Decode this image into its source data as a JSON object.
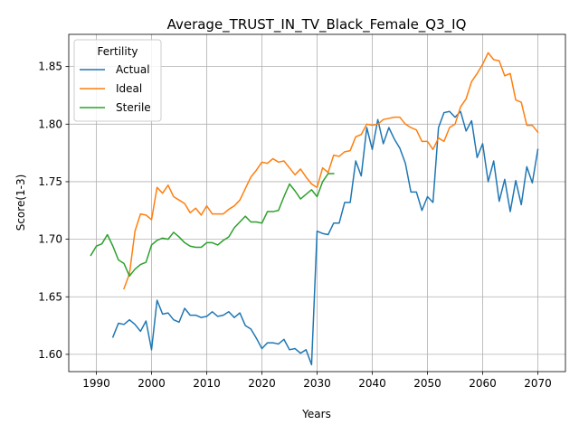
{
  "chart_data": {
    "type": "line",
    "title": "Average_TRUST_IN_TV_Black_Female_Q3_IQ",
    "xlabel": "Years",
    "ylabel": "Score(1-3)",
    "xlim": [
      1985,
      2075
    ],
    "ylim": [
      1.585,
      1.878
    ],
    "xticks": [
      1990,
      2000,
      2010,
      2020,
      2030,
      2040,
      2050,
      2060,
      2070
    ],
    "yticks": [
      1.6,
      1.65,
      1.7,
      1.75,
      1.8,
      1.85
    ],
    "grid": true,
    "legend": {
      "title": "Fertility",
      "placement": "top-left"
    },
    "series": [
      {
        "name": "Actual",
        "color": "#1f77b4",
        "x": [
          1993,
          1994,
          1995,
          1996,
          1997,
          1998,
          1999,
          2000,
          2001,
          2002,
          2003,
          2004,
          2005,
          2006,
          2007,
          2008,
          2009,
          2010,
          2011,
          2012,
          2013,
          2014,
          2015,
          2016,
          2017,
          2018,
          2019,
          2020,
          2021,
          2022,
          2023,
          2024,
          2025,
          2026,
          2027,
          2028,
          2029,
          2030,
          2031,
          2032,
          2033,
          2034,
          2035,
          2036,
          2037,
          2038,
          2039,
          2040,
          2041,
          2042,
          2043,
          2044,
          2045,
          2046,
          2047,
          2048,
          2049,
          2050,
          2051,
          2052,
          2053,
          2054,
          2055,
          2056,
          2057,
          2058,
          2059,
          2060,
          2061,
          2062,
          2063,
          2064,
          2065,
          2066,
          2067,
          2068,
          2069,
          2070
        ],
        "values": [
          1.615,
          1.627,
          1.626,
          1.63,
          1.626,
          1.62,
          1.629,
          1.604,
          1.647,
          1.635,
          1.636,
          1.63,
          1.628,
          1.64,
          1.634,
          1.634,
          1.632,
          1.633,
          1.637,
          1.633,
          1.634,
          1.637,
          1.632,
          1.636,
          1.625,
          1.622,
          1.614,
          1.605,
          1.61,
          1.61,
          1.609,
          1.613,
          1.604,
          1.605,
          1.601,
          1.604,
          1.591,
          1.707,
          1.705,
          1.704,
          1.714,
          1.714,
          1.732,
          1.732,
          1.768,
          1.755,
          1.797,
          1.778,
          1.804,
          1.783,
          1.797,
          1.787,
          1.779,
          1.766,
          1.741,
          1.741,
          1.725,
          1.737,
          1.732,
          1.797,
          1.81,
          1.811,
          1.806,
          1.811,
          1.794,
          1.803,
          1.771,
          1.783,
          1.75,
          1.768,
          1.733,
          1.752,
          1.724,
          1.751,
          1.73,
          1.763,
          1.749,
          1.778
        ]
      },
      {
        "name": "Ideal",
        "color": "#ff7f0e",
        "x": [
          1995,
          1996,
          1997,
          1998,
          1999,
          2000,
          2001,
          2002,
          2003,
          2004,
          2005,
          2006,
          2007,
          2008,
          2009,
          2010,
          2011,
          2012,
          2013,
          2014,
          2015,
          2016,
          2017,
          2018,
          2019,
          2020,
          2021,
          2022,
          2023,
          2024,
          2025,
          2026,
          2027,
          2028,
          2029,
          2030,
          2031,
          2032,
          2033,
          2034,
          2035,
          2036,
          2037,
          2038,
          2039,
          2040,
          2041,
          2042,
          2043,
          2044,
          2045,
          2046,
          2047,
          2048,
          2049,
          2050,
          2051,
          2052,
          2053,
          2054,
          2055,
          2056,
          2057,
          2058,
          2059,
          2060,
          2061,
          2062,
          2063,
          2064,
          2065,
          2066,
          2067,
          2068,
          2069,
          2070
        ],
        "values": [
          1.657,
          1.67,
          1.707,
          1.722,
          1.721,
          1.717,
          1.745,
          1.74,
          1.747,
          1.737,
          1.734,
          1.731,
          1.723,
          1.727,
          1.721,
          1.729,
          1.722,
          1.722,
          1.722,
          1.726,
          1.729,
          1.734,
          1.744,
          1.754,
          1.76,
          1.767,
          1.766,
          1.77,
          1.767,
          1.768,
          1.762,
          1.756,
          1.761,
          1.754,
          1.748,
          1.745,
          1.762,
          1.758,
          1.773,
          1.772,
          1.776,
          1.777,
          1.789,
          1.791,
          1.8,
          1.799,
          1.8,
          1.804,
          1.805,
          1.806,
          1.806,
          1.8,
          1.797,
          1.795,
          1.785,
          1.785,
          1.778,
          1.788,
          1.785,
          1.797,
          1.8,
          1.815,
          1.822,
          1.837,
          1.844,
          1.852,
          1.862,
          1.856,
          1.855,
          1.842,
          1.844,
          1.821,
          1.819,
          1.799,
          1.799,
          1.793
        ]
      },
      {
        "name": "Sterile",
        "color": "#2ca02c",
        "x": [
          1989,
          1990,
          1991,
          1992,
          1993,
          1994,
          1995,
          1996,
          1997,
          1998,
          1999,
          2000,
          2001,
          2002,
          2003,
          2004,
          2005,
          2006,
          2007,
          2008,
          2009,
          2010,
          2011,
          2012,
          2013,
          2014,
          2015,
          2016,
          2017,
          2018,
          2019,
          2020,
          2021,
          2022,
          2023,
          2024,
          2025,
          2026,
          2027,
          2028,
          2029,
          2030,
          2031,
          2032,
          2033
        ],
        "values": [
          1.686,
          1.694,
          1.696,
          1.704,
          1.694,
          1.682,
          1.679,
          1.668,
          1.674,
          1.678,
          1.68,
          1.695,
          1.699,
          1.701,
          1.7,
          1.706,
          1.702,
          1.697,
          1.694,
          1.693,
          1.693,
          1.697,
          1.697,
          1.695,
          1.699,
          1.702,
          1.71,
          1.715,
          1.72,
          1.715,
          1.715,
          1.714,
          1.724,
          1.724,
          1.725,
          1.737,
          1.748,
          1.742,
          1.735,
          1.739,
          1.743,
          1.737,
          1.75,
          1.757,
          1.757
        ]
      }
    ]
  }
}
